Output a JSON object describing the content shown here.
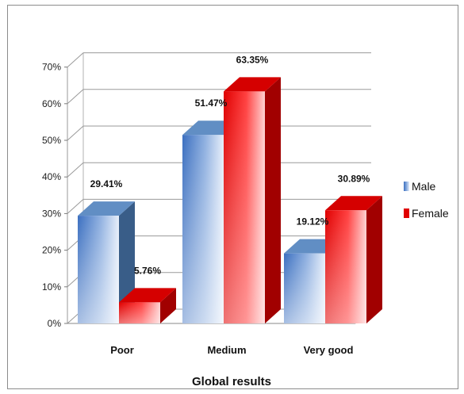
{
  "chart_data": {
    "type": "bar",
    "title": "",
    "xlabel": "Global results",
    "ylabel": "",
    "categories": [
      "Poor",
      "Medium",
      "Very good"
    ],
    "series": [
      {
        "name": "Male",
        "values": [
          29.41,
          51.47,
          19.12
        ],
        "labels": [
          "29.41%",
          "51.47%",
          "19.12%"
        ],
        "color": "#4f81bd"
      },
      {
        "name": "Female",
        "values": [
          5.76,
          63.35,
          30.89
        ],
        "labels": [
          "5.76%",
          "63.35%",
          "30.89%"
        ],
        "color": "#e00000"
      }
    ],
    "ylim": [
      0,
      70
    ],
    "yticks": [
      0,
      10,
      20,
      30,
      40,
      50,
      60,
      70
    ],
    "ytick_labels": [
      "0%",
      "10%",
      "20%",
      "30%",
      "40%",
      "50%",
      "60%",
      "70%"
    ],
    "grid": true,
    "style": "3d-clustered-column",
    "legend_position": "right"
  }
}
